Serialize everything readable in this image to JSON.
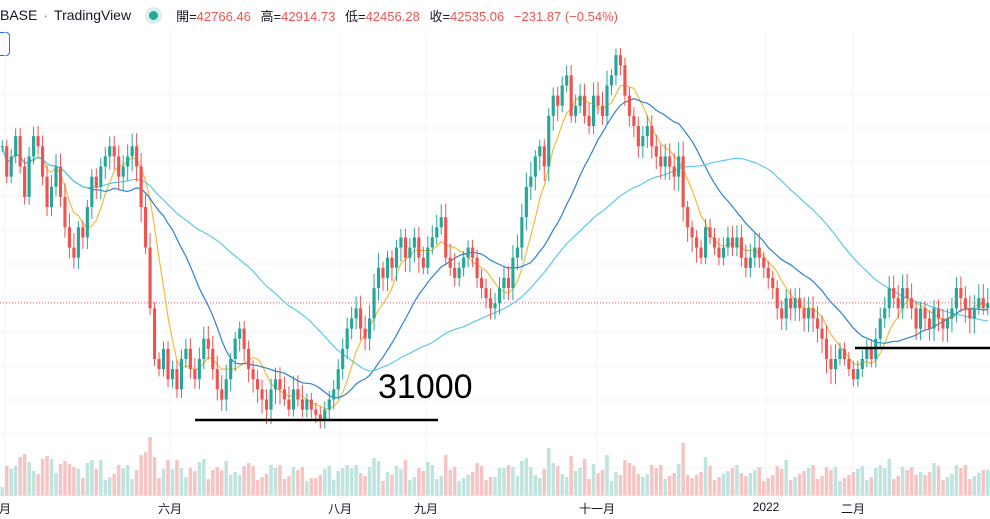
{
  "header": {
    "symbol": "BASE",
    "separator": "·",
    "provider": "TradingView",
    "open_label": "開=",
    "open": "42766.46",
    "high_label": "高=",
    "high": "42914.73",
    "low_label": "低=",
    "low": "42456.28",
    "close_label": "收=",
    "close": "42535.06",
    "change": "−231.87 (−0.54%)"
  },
  "x_axis_labels": [
    "月",
    "六月",
    "八月",
    "九月",
    "十一月",
    "2022",
    "二月"
  ],
  "annotation": "31000",
  "colors": {
    "up": "#26a69a",
    "down": "#ef5350",
    "ma_fast": "#f5b942",
    "ma_mid": "#2f80d1",
    "ma_slow": "#5ec8e8",
    "support_line": "#000000",
    "volume_up": "#bfe3de",
    "volume_down": "#f6c4c3"
  },
  "chart_data": {
    "type": "candlestick",
    "support_levels": [
      31000
    ],
    "description_series": "approximate daily close path (BTC, Apr 2021 – Feb 2022)",
    "close": [
      58000,
      55000,
      57000,
      59000,
      56000,
      53000,
      57000,
      59000,
      58000,
      55000,
      52000,
      54000,
      56000,
      53000,
      50000,
      48000,
      47000,
      50000,
      49000,
      52000,
      55000,
      54000,
      56000,
      57000,
      58000,
      57000,
      55000,
      56000,
      57000,
      58000,
      56000,
      52000,
      48000,
      42000,
      37000,
      36000,
      38000,
      35000,
      36000,
      34000,
      37000,
      38000,
      36000,
      35000,
      37000,
      39000,
      38000,
      36000,
      34000,
      33000,
      35000,
      37000,
      39000,
      40000,
      38000,
      36000,
      35000,
      34000,
      33000,
      32000,
      34000,
      35000,
      34000,
      33000,
      32000,
      34000,
      33000,
      32000,
      33000,
      32000,
      31500,
      31000,
      32000,
      33000,
      34000,
      36000,
      38000,
      40000,
      41000,
      42000,
      40000,
      39000,
      41000,
      44000,
      46000,
      45000,
      47000,
      46000,
      48000,
      49000,
      47000,
      48000,
      49000,
      47000,
      46000,
      48000,
      49000,
      50000,
      51000,
      47000,
      46000,
      45000,
      46000,
      47000,
      48000,
      47000,
      45000,
      44000,
      43000,
      42000,
      42500,
      44000,
      45000,
      44000,
      47000,
      48000,
      51000,
      54000,
      55000,
      57000,
      58000,
      56000,
      61000,
      63000,
      62000,
      64000,
      65000,
      61000,
      62000,
      63000,
      61000,
      60000,
      63000,
      62000,
      61000,
      64000,
      65000,
      67000,
      66000,
      63000,
      61000,
      60000,
      58000,
      59000,
      60000,
      58000,
      57000,
      56000,
      57000,
      56000,
      55000,
      57000,
      52000,
      50000,
      49000,
      48000,
      47000,
      50000,
      49000,
      48000,
      47000,
      48000,
      49000,
      48000,
      49000,
      47000,
      46000,
      47000,
      48000,
      47000,
      46000,
      45000,
      44000,
      42000,
      41000,
      43000,
      42000,
      43000,
      42000,
      41000,
      42000,
      41000,
      40000,
      39000,
      37000,
      36000,
      37000,
      38000,
      37000,
      36000,
      35000,
      36000,
      37000,
      38000,
      37000,
      39000,
      41000,
      42000,
      44000,
      43000,
      42000,
      44000,
      43000,
      42000,
      40000,
      42000,
      41000,
      40000,
      42000,
      41000,
      40000,
      41000,
      42000,
      44000,
      43000,
      42000,
      41000,
      42000,
      43000,
      42000,
      42535
    ]
  }
}
